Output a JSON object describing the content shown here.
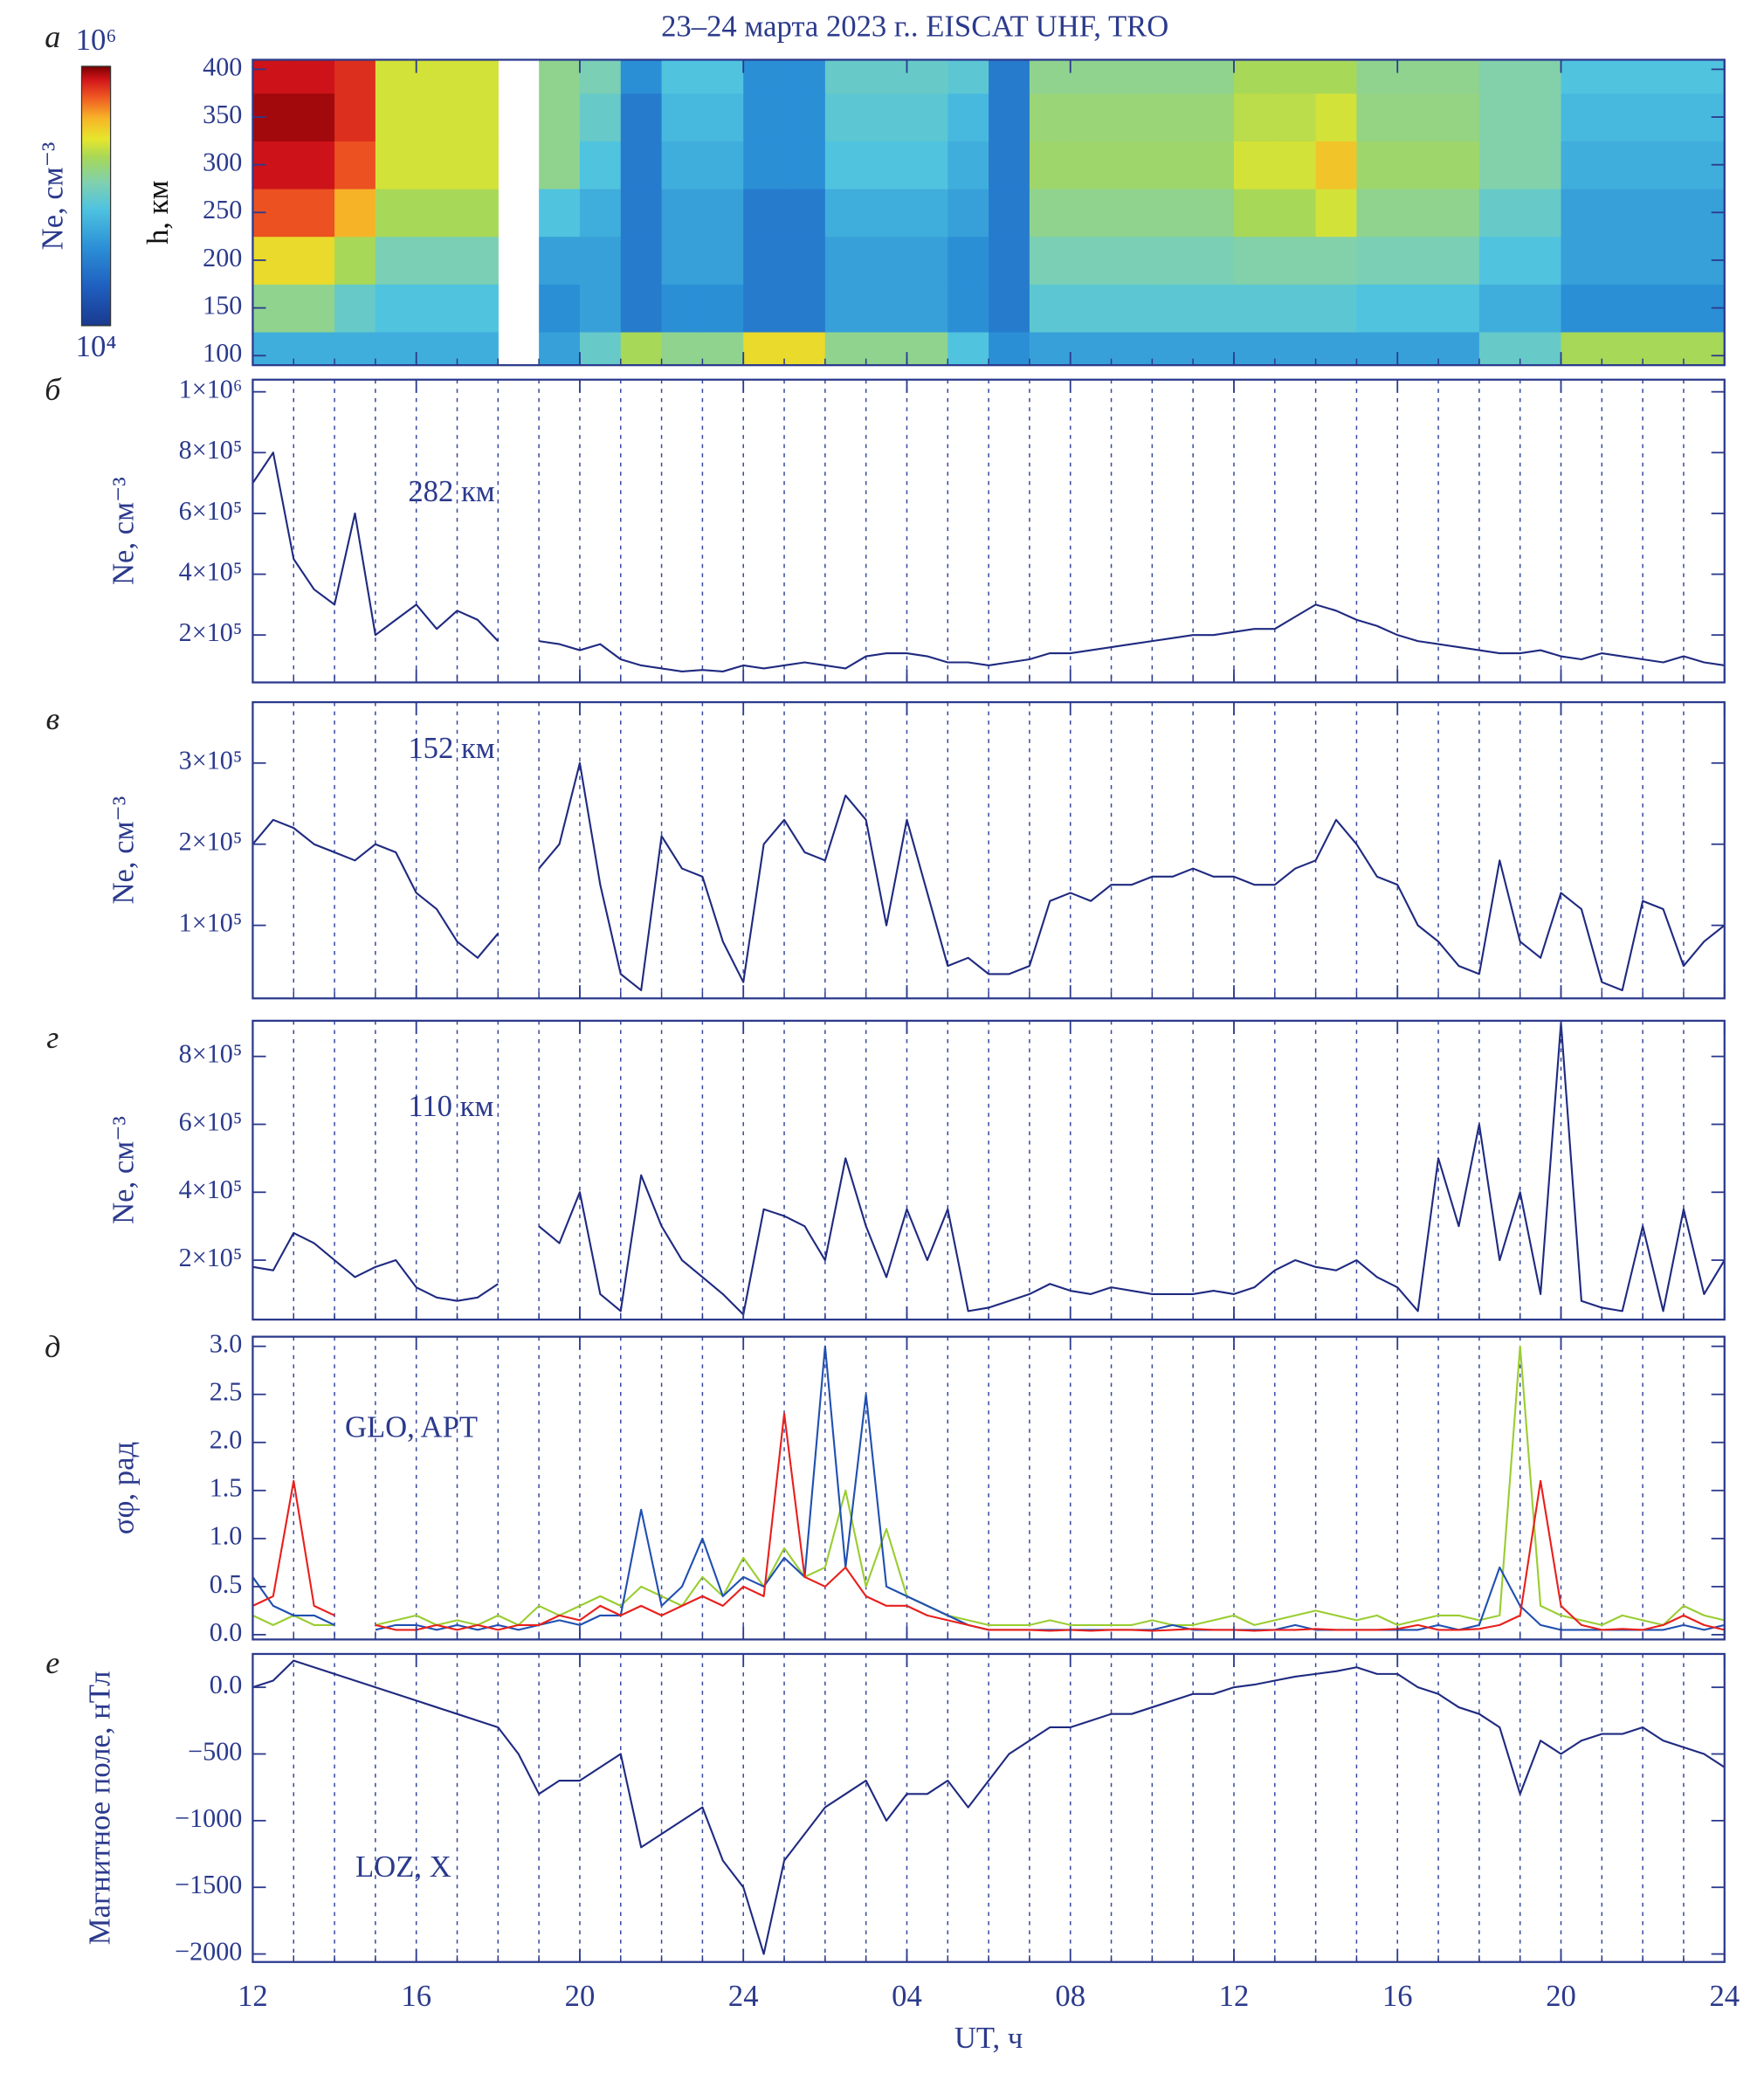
{
  "title": "23–24 марта 2023 г.. EISCAT UHF, TRO",
  "x_label": "UT, ч",
  "xlim": [
    12,
    48
  ],
  "xticks": [
    12,
    16,
    20,
    24,
    {
      "value": 28,
      "label": "04"
    },
    {
      "value": 32,
      "label": "08"
    },
    {
      "value": 36,
      "label": "12"
    },
    {
      "value": 40,
      "label": "16"
    },
    {
      "value": 44,
      "label": "20"
    },
    {
      "value": 48,
      "label": "24"
    }
  ],
  "xgrid": [
    13,
    14,
    15,
    16,
    17,
    18,
    19,
    20,
    21,
    22,
    23,
    24,
    25,
    26,
    27,
    28,
    29,
    30,
    31,
    32,
    33,
    34,
    35,
    36,
    37,
    38,
    39,
    40,
    41,
    42,
    43,
    44,
    45,
    46,
    47
  ],
  "x": [
    12,
    12.5,
    13,
    13.5,
    14,
    14.5,
    15,
    15.5,
    16,
    16.5,
    17,
    17.5,
    18,
    18.5,
    19,
    19.5,
    20,
    20.5,
    21,
    21.5,
    22,
    22.5,
    23,
    23.5,
    24,
    24.5,
    25,
    25.5,
    26,
    26.5,
    27,
    27.5,
    28,
    28.5,
    29,
    29.5,
    30,
    30.5,
    31,
    31.5,
    32,
    32.5,
    33,
    33.5,
    34,
    34.5,
    35,
    35.5,
    36,
    36.5,
    37,
    37.5,
    38,
    38.5,
    39,
    39.5,
    40,
    40.5,
    41,
    41.5,
    42,
    42.5,
    43,
    43.5,
    44,
    44.5,
    45,
    45.5,
    46,
    46.5,
    47,
    47.5,
    48
  ],
  "chart_data": [
    {
      "type": "heatmap",
      "panel_label": "а",
      "y_label": "h, км",
      "z_label": "Ne, см⁻³",
      "x_edges": [
        12,
        13,
        14,
        15,
        16,
        17,
        18,
        19,
        20,
        21,
        22,
        23,
        24,
        25,
        26,
        27,
        28,
        29,
        30,
        31,
        32,
        33,
        34,
        35,
        36,
        37,
        38,
        39,
        40,
        41,
        42,
        43,
        44,
        45,
        46,
        47,
        48
      ],
      "y": [
        100,
        150,
        200,
        250,
        300,
        350,
        400
      ],
      "ylim": [
        90,
        410
      ],
      "yticks": [
        100,
        150,
        200,
        250,
        300,
        350,
        400
      ],
      "zscale": "log",
      "zlim": [
        10000,
        1000000
      ],
      "zticks": [
        {
          "value": 1000000,
          "label": "10⁶"
        },
        {
          "value": 10000,
          "label": "10⁴"
        }
      ],
      "z": [
        [
          60000,
          60000,
          60000,
          60000,
          60000,
          60000,
          null,
          50000,
          100000,
          200000,
          150000,
          150000,
          300000,
          300000,
          150000,
          150000,
          150000,
          80000,
          40000,
          50000,
          50000,
          50000,
          50000,
          50000,
          50000,
          50000,
          50000,
          50000,
          50000,
          50000,
          100000,
          100000,
          200000,
          200000,
          200000,
          200000
        ],
        [
          150000,
          150000,
          100000,
          80000,
          80000,
          80000,
          null,
          40000,
          50000,
          30000,
          40000,
          40000,
          30000,
          30000,
          50000,
          50000,
          50000,
          40000,
          30000,
          90000,
          90000,
          90000,
          90000,
          90000,
          90000,
          90000,
          90000,
          80000,
          80000,
          80000,
          60000,
          60000,
          40000,
          40000,
          40000,
          40000
        ],
        [
          300000,
          300000,
          200000,
          120000,
          120000,
          120000,
          null,
          50000,
          50000,
          30000,
          50000,
          50000,
          30000,
          30000,
          50000,
          50000,
          50000,
          40000,
          30000,
          120000,
          120000,
          120000,
          120000,
          120000,
          130000,
          130000,
          130000,
          120000,
          120000,
          120000,
          80000,
          80000,
          50000,
          50000,
          50000,
          50000
        ],
        [
          600000,
          600000,
          400000,
          200000,
          200000,
          200000,
          null,
          80000,
          60000,
          30000,
          50000,
          50000,
          30000,
          30000,
          60000,
          60000,
          60000,
          50000,
          30000,
          150000,
          150000,
          150000,
          150000,
          150000,
          200000,
          200000,
          250000,
          150000,
          150000,
          150000,
          100000,
          100000,
          50000,
          50000,
          50000,
          50000
        ],
        [
          800000,
          800000,
          600000,
          250000,
          250000,
          250000,
          null,
          150000,
          80000,
          30000,
          60000,
          60000,
          40000,
          40000,
          80000,
          80000,
          80000,
          60000,
          30000,
          180000,
          180000,
          180000,
          180000,
          180000,
          250000,
          250000,
          350000,
          180000,
          180000,
          180000,
          130000,
          130000,
          60000,
          60000,
          60000,
          60000
        ],
        [
          900000,
          900000,
          700000,
          250000,
          250000,
          250000,
          null,
          150000,
          100000,
          30000,
          70000,
          70000,
          40000,
          40000,
          90000,
          90000,
          90000,
          70000,
          30000,
          170000,
          170000,
          170000,
          170000,
          170000,
          220000,
          220000,
          250000,
          160000,
          160000,
          160000,
          130000,
          130000,
          70000,
          70000,
          70000,
          70000
        ],
        [
          800000,
          800000,
          700000,
          250000,
          250000,
          250000,
          null,
          150000,
          120000,
          40000,
          80000,
          80000,
          40000,
          40000,
          100000,
          100000,
          100000,
          90000,
          30000,
          150000,
          150000,
          150000,
          150000,
          150000,
          200000,
          200000,
          200000,
          150000,
          150000,
          150000,
          130000,
          130000,
          80000,
          80000,
          80000,
          80000
        ]
      ]
    },
    {
      "type": "line",
      "panel_label": "б",
      "y_label": "Ne, см⁻³",
      "annotation": "282 км",
      "color": "#1f2a80",
      "ylim": [
        44000,
        1040000
      ],
      "yticks": [
        {
          "value": 200000,
          "label": "2×10⁵"
        },
        {
          "value": 400000,
          "label": "4×10⁵"
        },
        {
          "value": 600000,
          "label": "6×10⁵"
        },
        {
          "value": 800000,
          "label": "8×10⁵"
        },
        {
          "value": 1000000,
          "label": "1×10⁶"
        }
      ],
      "values": [
        700000,
        800000,
        450000,
        350000,
        300000,
        600000,
        200000,
        250000,
        300000,
        220000,
        280000,
        250000,
        180000,
        null,
        180000,
        170000,
        150000,
        170000,
        120000,
        100000,
        90000,
        80000,
        85000,
        80000,
        100000,
        90000,
        100000,
        110000,
        100000,
        90000,
        130000,
        140000,
        140000,
        130000,
        110000,
        110000,
        100000,
        110000,
        120000,
        140000,
        140000,
        150000,
        160000,
        170000,
        180000,
        190000,
        200000,
        200000,
        210000,
        220000,
        220000,
        260000,
        300000,
        280000,
        250000,
        230000,
        200000,
        180000,
        170000,
        160000,
        150000,
        140000,
        140000,
        150000,
        130000,
        120000,
        140000,
        130000,
        120000,
        110000,
        130000,
        110000,
        100000
      ]
    },
    {
      "type": "line",
      "panel_label": "в",
      "y_label": "Ne, см⁻³",
      "annotation": "152 км",
      "color": "#1f2a80",
      "ylim": [
        10000,
        375000
      ],
      "yticks": [
        {
          "value": 100000,
          "label": "1×10⁵"
        },
        {
          "value": 200000,
          "label": "2×10⁵"
        },
        {
          "value": 300000,
          "label": "3×10⁵"
        }
      ],
      "values": [
        200000,
        230000,
        220000,
        200000,
        190000,
        180000,
        200000,
        190000,
        140000,
        120000,
        80000,
        60000,
        90000,
        null,
        170000,
        200000,
        300000,
        150000,
        40000,
        20000,
        210000,
        170000,
        160000,
        80000,
        30000,
        200000,
        230000,
        190000,
        180000,
        260000,
        230000,
        100000,
        230000,
        140000,
        50000,
        60000,
        40000,
        40000,
        50000,
        130000,
        140000,
        130000,
        150000,
        150000,
        160000,
        160000,
        170000,
        160000,
        160000,
        150000,
        150000,
        170000,
        180000,
        230000,
        200000,
        160000,
        150000,
        100000,
        80000,
        50000,
        40000,
        180000,
        80000,
        60000,
        140000,
        120000,
        30000,
        20000,
        130000,
        120000,
        50000,
        80000,
        100000
      ]
    },
    {
      "type": "line",
      "panel_label": "г",
      "y_label": "Ne, см⁻³",
      "annotation": "110 км",
      "color": "#1f2a80",
      "ylim": [
        25000,
        905000
      ],
      "yticks": [
        {
          "value": 200000,
          "label": "2×10⁵"
        },
        {
          "value": 400000,
          "label": "4×10⁵"
        },
        {
          "value": 600000,
          "label": "6×10⁵"
        },
        {
          "value": 800000,
          "label": "8×10⁵"
        }
      ],
      "values": [
        180000,
        170000,
        280000,
        250000,
        200000,
        150000,
        180000,
        200000,
        120000,
        90000,
        80000,
        90000,
        130000,
        null,
        300000,
        250000,
        400000,
        100000,
        50000,
        450000,
        300000,
        200000,
        150000,
        100000,
        40000,
        350000,
        330000,
        300000,
        200000,
        500000,
        300000,
        150000,
        350000,
        200000,
        350000,
        50000,
        60000,
        80000,
        100000,
        130000,
        110000,
        100000,
        120000,
        110000,
        100000,
        100000,
        100000,
        110000,
        100000,
        120000,
        170000,
        200000,
        180000,
        170000,
        200000,
        150000,
        120000,
        50000,
        500000,
        300000,
        600000,
        200000,
        400000,
        100000,
        900000,
        80000,
        60000,
        50000,
        300000,
        50000,
        350000,
        100000,
        200000
      ]
    },
    {
      "type": "multi_line",
      "panel_label": "д",
      "y_label": "σφ, рад",
      "annotation": "GLO, APT",
      "ylim": [
        -0.05,
        3.1
      ],
      "yticks": [
        {
          "value": 0,
          "label": "0.0"
        },
        0.5,
        {
          "value": 1,
          "label": "1.0"
        },
        1.5,
        {
          "value": 2,
          "label": "2.0"
        },
        2.5,
        {
          "value": 3,
          "label": "3.0"
        }
      ],
      "series": [
        {
          "color": "#9acd32",
          "values": [
            0.2,
            0.1,
            0.2,
            0.1,
            0.1,
            null,
            0.1,
            0.15,
            0.2,
            0.1,
            0.15,
            0.1,
            0.2,
            0.1,
            0.3,
            0.2,
            0.3,
            0.4,
            0.3,
            0.5,
            0.4,
            0.3,
            0.6,
            0.4,
            0.8,
            0.5,
            0.9,
            0.6,
            0.7,
            1.5,
            0.5,
            1.1,
            0.4,
            0.3,
            0.2,
            0.15,
            0.1,
            0.1,
            0.1,
            0.15,
            0.1,
            0.1,
            0.1,
            0.1,
            0.15,
            0.1,
            0.1,
            0.15,
            0.2,
            0.1,
            0.15,
            0.2,
            0.25,
            0.2,
            0.15,
            0.2,
            0.1,
            0.15,
            0.2,
            0.2,
            0.15,
            0.2,
            3.0,
            0.3,
            0.2,
            0.15,
            0.1,
            0.2,
            0.15,
            0.1,
            0.3,
            0.2,
            0.15
          ]
        },
        {
          "color": "#2050b0",
          "values": [
            0.6,
            0.3,
            0.2,
            0.2,
            0.1,
            null,
            0.05,
            0.1,
            0.1,
            0.05,
            0.1,
            0.05,
            0.1,
            0.05,
            0.1,
            0.15,
            0.1,
            0.2,
            0.2,
            1.3,
            0.3,
            0.5,
            1.0,
            0.4,
            0.6,
            0.5,
            0.8,
            0.6,
            3.0,
            0.7,
            2.5,
            0.5,
            0.4,
            0.3,
            0.2,
            0.1,
            0.05,
            0.05,
            0.05,
            0.05,
            0.05,
            0.05,
            0.05,
            0.05,
            0.05,
            0.1,
            0.05,
            0.05,
            0.05,
            0.05,
            0.05,
            0.1,
            0.05,
            0.05,
            0.05,
            0.05,
            0.05,
            0.05,
            0.1,
            0.05,
            0.1,
            0.7,
            0.3,
            0.1,
            0.05,
            0.05,
            0.05,
            0.05,
            0.05,
            0.05,
            0.1,
            0.05,
            0.1
          ]
        },
        {
          "color": "#e8201c",
          "values": [
            0.3,
            0.4,
            1.6,
            0.3,
            0.2,
            null,
            0.1,
            0.05,
            0.05,
            0.1,
            0.05,
            0.1,
            0.05,
            0.1,
            0.1,
            0.2,
            0.15,
            0.3,
            0.2,
            0.3,
            0.2,
            0.3,
            0.4,
            0.3,
            0.5,
            0.4,
            2.3,
            0.6,
            0.5,
            0.7,
            0.4,
            0.3,
            0.3,
            0.2,
            0.15,
            0.1,
            0.05,
            0.05,
            0.05,
            0.04,
            0.05,
            0.04,
            0.05,
            0.05,
            0.04,
            0.05,
            0.06,
            0.05,
            0.05,
            0.04,
            0.05,
            0.05,
            0.06,
            0.05,
            0.05,
            0.05,
            0.06,
            0.1,
            0.05,
            0.05,
            0.06,
            0.1,
            0.2,
            1.6,
            0.3,
            0.1,
            0.05,
            0.06,
            0.05,
            0.1,
            0.2,
            0.1,
            0.05
          ]
        }
      ]
    },
    {
      "type": "line",
      "panel_label": "е",
      "y_label": "Магнитное поле, нТл",
      "annotation": "LOZ, X",
      "color": "#1f2a80",
      "ylim": [
        -2060,
        250
      ],
      "yticks": [
        {
          "value": -2000,
          "label": "−2000"
        },
        {
          "value": -1500,
          "label": "−1500"
        },
        {
          "value": -1000,
          "label": "−1000"
        },
        {
          "value": -500,
          "label": "−500"
        },
        {
          "value": 0,
          "label": "0.0"
        }
      ],
      "values": [
        0,
        50,
        200,
        150,
        100,
        50,
        0,
        -50,
        -100,
        -150,
        -200,
        -250,
        -300,
        -500,
        -800,
        -700,
        -700,
        -600,
        -500,
        -1200,
        -1100,
        -1000,
        -900,
        -1300,
        -1500,
        -2000,
        -1300,
        -1100,
        -900,
        -800,
        -700,
        -1000,
        -800,
        -800,
        -700,
        -900,
        -700,
        -500,
        -400,
        -300,
        -300,
        -250,
        -200,
        -200,
        -150,
        -100,
        -50,
        -50,
        0,
        20,
        50,
        80,
        100,
        120,
        150,
        100,
        100,
        0,
        -50,
        -150,
        -200,
        -300,
        -800,
        -400,
        -500,
        -400,
        -350,
        -350,
        -300,
        -400,
        -450,
        -500,
        -600
      ]
    }
  ]
}
